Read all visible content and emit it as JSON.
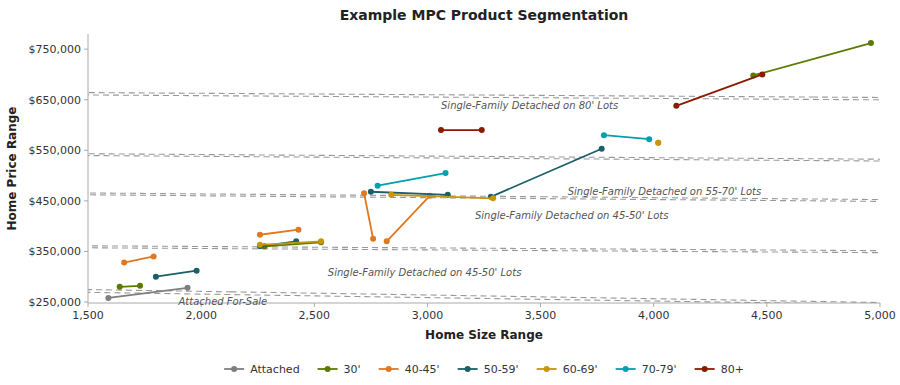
{
  "chart_data": {
    "type": "line",
    "title": "Example MPC Product Segmentation",
    "x_label": "Home Size Range",
    "y_label": "Home Price Range",
    "xlim": [
      1500,
      5000
    ],
    "ylim": [
      248000,
      780000
    ],
    "xticks": [
      {
        "value": 1500,
        "label": "1,500"
      },
      {
        "value": 2000,
        "label": "2,000"
      },
      {
        "value": 2500,
        "label": "2,500"
      },
      {
        "value": 3000,
        "label": "3,000"
      },
      {
        "value": 3500,
        "label": "3,500"
      },
      {
        "value": 4000,
        "label": "4,000"
      },
      {
        "value": 4500,
        "label": "4,500"
      },
      {
        "value": 5000,
        "label": "5,000"
      }
    ],
    "yticks": [
      {
        "value": 250000,
        "label": "$250,000"
      },
      {
        "value": 350000,
        "label": "$350,000"
      },
      {
        "value": 450000,
        "label": "$450,000"
      },
      {
        "value": 550000,
        "label": "$550,000"
      },
      {
        "value": 650000,
        "label": "$650,000"
      },
      {
        "value": 750000,
        "label": "$750,000"
      }
    ],
    "grid": false,
    "legend": "bottom",
    "marker": "circle",
    "line_style": "solid",
    "series": [
      {
        "name": "Attached",
        "color": "#7f7f7f",
        "x": [
          1590,
          1940
        ],
        "values": [
          258000,
          278000
        ]
      },
      {
        "name": "30'",
        "color": "#5a7a00",
        "x": [
          1640,
          1730,
          null,
          2280,
          2530,
          null,
          4440,
          4960
        ],
        "values": [
          280000,
          282000,
          null,
          360000,
          368000,
          null,
          698000,
          762000
        ]
      },
      {
        "name": "40-45'",
        "color": "#e07820",
        "x": [
          1660,
          1790,
          null,
          2260,
          2430,
          null,
          2720,
          2760,
          null,
          2820,
          3010
        ],
        "values": [
          328000,
          340000,
          null,
          383000,
          393000,
          null,
          465000,
          375000,
          null,
          370000,
          460000
        ]
      },
      {
        "name": "50-59'",
        "color": "#1a5f6a",
        "x": [
          1800,
          1980,
          null,
          2260,
          2420,
          null,
          2750,
          3090,
          null,
          3280,
          3770
        ],
        "values": [
          300000,
          312000,
          null,
          360000,
          370000,
          null,
          468000,
          462000,
          null,
          458000,
          553000
        ]
      },
      {
        "name": "60-69'",
        "color": "#c8960c",
        "x": [
          2260,
          2530,
          null,
          2840,
          3290,
          null,
          4020,
          4020
        ],
        "values": [
          363000,
          370000,
          null,
          462000,
          455000,
          null,
          565000,
          565000
        ]
      },
      {
        "name": "70-79'",
        "color": "#00a0b0",
        "x": [
          2780,
          3080,
          null,
          3780,
          3980
        ],
        "values": [
          480000,
          505000,
          null,
          580000,
          572000
        ]
      },
      {
        "name": "80+",
        "color": "#8b1a00",
        "x": [
          3060,
          3240,
          null,
          4100,
          4480
        ],
        "values": [
          590000,
          590000,
          null,
          638000,
          700000
        ]
      }
    ],
    "annotations": [
      {
        "text": "Attached For-Sale",
        "x": 1900,
        "y": 259000,
        "ellipse": {
          "cx": 1760,
          "cy": 270000,
          "width": 760,
          "height": 60000,
          "angle": 8
        }
      },
      {
        "text": "Single-Family Detached on 45-50' Lots",
        "x": 2560,
        "y": 316000,
        "ellipse": {
          "cx": 2280,
          "cy": 357000,
          "width": 1350,
          "height": 155000,
          "angle": 20
        }
      },
      {
        "text": "Single-Family Detached on 45-50' Lots",
        "x": 3210,
        "y": 428000,
        "ellipse": {
          "cx": 3060,
          "cy": 458000,
          "width": 960,
          "height": 110000,
          "angle": 15
        }
      },
      {
        "text": "Single-Family Detached on 55-70' Lots",
        "x": 3620,
        "y": 476000,
        "ellipse": {
          "cx": 3570,
          "cy": 535000,
          "width": 1100,
          "height": 120000,
          "angle": 18
        }
      },
      {
        "text": "Single-Family Detached on 80' Lots",
        "x": 3060,
        "y": 645000,
        "ellipse": {
          "cx": 3960,
          "cy": 655000,
          "width": 1600,
          "height": 200000,
          "angle": 20
        }
      }
    ]
  }
}
